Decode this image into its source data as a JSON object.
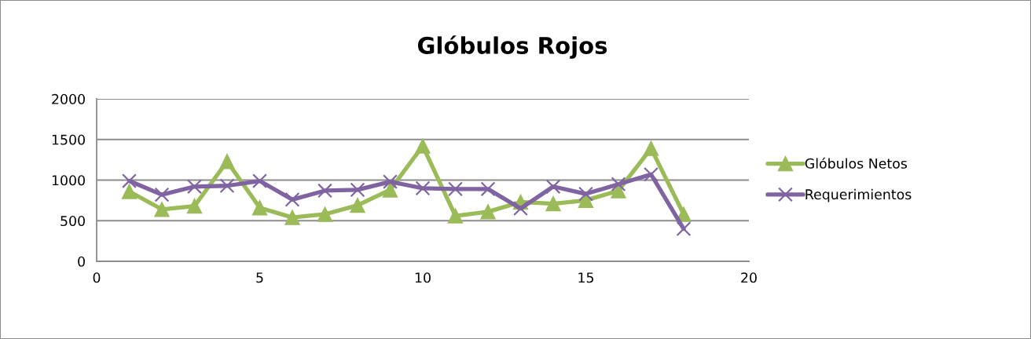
{
  "chart_data": {
    "type": "line",
    "title": "Glóbulos Rojos",
    "x": [
      1,
      2,
      3,
      4,
      5,
      6,
      7,
      8,
      9,
      10,
      11,
      12,
      13,
      14,
      15,
      16,
      17,
      18
    ],
    "series": [
      {
        "name": "Glóbulos Netos",
        "color": "#9bbb59",
        "marker": "triangle",
        "values": [
          860,
          640,
          680,
          1230,
          660,
          540,
          580,
          690,
          880,
          1420,
          560,
          610,
          730,
          710,
          750,
          870,
          1390,
          580
        ]
      },
      {
        "name": "Requerimientos",
        "color": "#8064a2",
        "marker": "cross",
        "values": [
          990,
          820,
          920,
          930,
          990,
          760,
          870,
          880,
          980,
          900,
          890,
          890,
          650,
          920,
          830,
          950,
          1070,
          400
        ]
      }
    ],
    "xlim": [
      0,
      20
    ],
    "xticks": [
      0,
      5,
      10,
      15,
      20
    ],
    "ylim": [
      0,
      2000
    ],
    "yticks": [
      0,
      500,
      1000,
      1500,
      2000
    ],
    "grid": "y",
    "legend": "right",
    "line_style": "solid"
  }
}
